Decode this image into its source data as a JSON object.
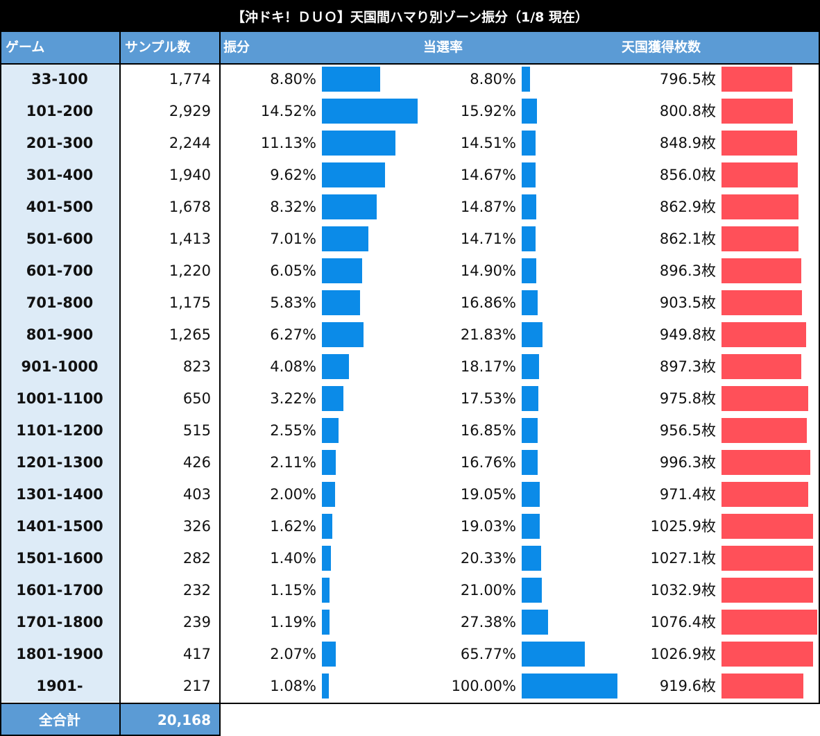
{
  "title": "【沖ドキ！ＤＵＯ】天国間ハマり別ゾーン振分（1/8 現在）",
  "headers": {
    "zone": "ゲーム",
    "samples": "サンプル数",
    "dist": "振分",
    "win_rate": "当選率",
    "medals": "天国獲得枚数"
  },
  "colors": {
    "header": "#5b9bd5",
    "zone_cell": "#ddebf7",
    "blue_bar": "#0b8be8",
    "red_bar": "#ff5059"
  },
  "chart_data": {
    "type": "table",
    "columns": [
      "ゲーム",
      "サンプル数",
      "振分",
      "当選率",
      "天国獲得枚数"
    ],
    "rows": [
      {
        "zone": "33-100",
        "samples": "1,774",
        "dist": "8.80%",
        "dist_value": 8.8,
        "rate": "8.80%",
        "rate_value": 8.8,
        "medals": "796.5枚",
        "medals_value": 796.5
      },
      {
        "zone": "101-200",
        "samples": "2,929",
        "dist": "14.52%",
        "dist_value": 14.52,
        "rate": "15.92%",
        "rate_value": 15.92,
        "medals": "800.8枚",
        "medals_value": 800.8
      },
      {
        "zone": "201-300",
        "samples": "2,244",
        "dist": "11.13%",
        "dist_value": 11.13,
        "rate": "14.51%",
        "rate_value": 14.51,
        "medals": "848.9枚",
        "medals_value": 848.9
      },
      {
        "zone": "301-400",
        "samples": "1,940",
        "dist": "9.62%",
        "dist_value": 9.62,
        "rate": "14.67%",
        "rate_value": 14.67,
        "medals": "856.0枚",
        "medals_value": 856.0
      },
      {
        "zone": "401-500",
        "samples": "1,678",
        "dist": "8.32%",
        "dist_value": 8.32,
        "rate": "14.87%",
        "rate_value": 14.87,
        "medals": "862.9枚",
        "medals_value": 862.9
      },
      {
        "zone": "501-600",
        "samples": "1,413",
        "dist": "7.01%",
        "dist_value": 7.01,
        "rate": "14.71%",
        "rate_value": 14.71,
        "medals": "862.1枚",
        "medals_value": 862.1
      },
      {
        "zone": "601-700",
        "samples": "1,220",
        "dist": "6.05%",
        "dist_value": 6.05,
        "rate": "14.90%",
        "rate_value": 14.9,
        "medals": "896.3枚",
        "medals_value": 896.3
      },
      {
        "zone": "701-800",
        "samples": "1,175",
        "dist": "5.83%",
        "dist_value": 5.83,
        "rate": "16.86%",
        "rate_value": 16.86,
        "medals": "903.5枚",
        "medals_value": 903.5
      },
      {
        "zone": "801-900",
        "samples": "1,265",
        "dist": "6.27%",
        "dist_value": 6.27,
        "rate": "21.83%",
        "rate_value": 21.83,
        "medals": "949.8枚",
        "medals_value": 949.8
      },
      {
        "zone": "901-1000",
        "samples": "823",
        "dist": "4.08%",
        "dist_value": 4.08,
        "rate": "18.17%",
        "rate_value": 18.17,
        "medals": "897.3枚",
        "medals_value": 897.3
      },
      {
        "zone": "1001-1100",
        "samples": "650",
        "dist": "3.22%",
        "dist_value": 3.22,
        "rate": "17.53%",
        "rate_value": 17.53,
        "medals": "975.8枚",
        "medals_value": 975.8
      },
      {
        "zone": "1101-1200",
        "samples": "515",
        "dist": "2.55%",
        "dist_value": 2.55,
        "rate": "16.85%",
        "rate_value": 16.85,
        "medals": "956.5枚",
        "medals_value": 956.5
      },
      {
        "zone": "1201-1300",
        "samples": "426",
        "dist": "2.11%",
        "dist_value": 2.11,
        "rate": "16.76%",
        "rate_value": 16.76,
        "medals": "996.3枚",
        "medals_value": 996.3
      },
      {
        "zone": "1301-1400",
        "samples": "403",
        "dist": "2.00%",
        "dist_value": 2.0,
        "rate": "19.05%",
        "rate_value": 19.05,
        "medals": "971.4枚",
        "medals_value": 971.4
      },
      {
        "zone": "1401-1500",
        "samples": "326",
        "dist": "1.62%",
        "dist_value": 1.62,
        "rate": "19.03%",
        "rate_value": 19.03,
        "medals": "1025.9枚",
        "medals_value": 1025.9
      },
      {
        "zone": "1501-1600",
        "samples": "282",
        "dist": "1.40%",
        "dist_value": 1.4,
        "rate": "20.33%",
        "rate_value": 20.33,
        "medals": "1027.1枚",
        "medals_value": 1027.1
      },
      {
        "zone": "1601-1700",
        "samples": "232",
        "dist": "1.15%",
        "dist_value": 1.15,
        "rate": "21.00%",
        "rate_value": 21.0,
        "medals": "1032.9枚",
        "medals_value": 1032.9
      },
      {
        "zone": "1701-1800",
        "samples": "239",
        "dist": "1.19%",
        "dist_value": 1.19,
        "rate": "27.38%",
        "rate_value": 27.38,
        "medals": "1076.4枚",
        "medals_value": 1076.4
      },
      {
        "zone": "1801-1900",
        "samples": "417",
        "dist": "2.07%",
        "dist_value": 2.07,
        "rate": "65.77%",
        "rate_value": 65.77,
        "medals": "1026.9枚",
        "medals_value": 1026.9
      },
      {
        "zone": "1901-",
        "samples": "217",
        "dist": "1.08%",
        "dist_value": 1.08,
        "rate": "100.00%",
        "rate_value": 100.0,
        "medals": "919.6枚",
        "medals_value": 919.6
      }
    ],
    "total": {
      "label": "全合計",
      "samples": "20,168"
    }
  }
}
